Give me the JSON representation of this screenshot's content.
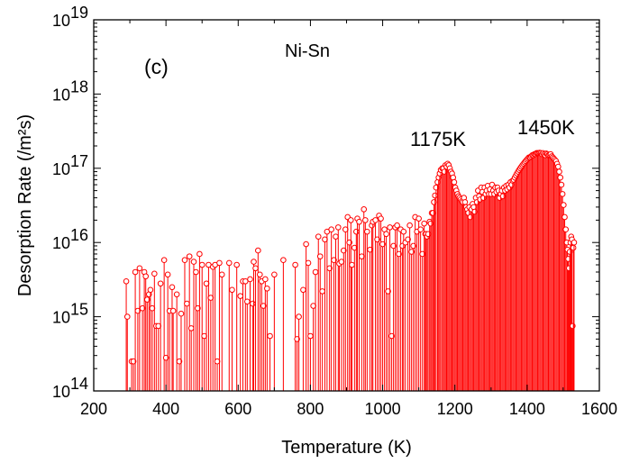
{
  "chart_data": {
    "type": "scatter",
    "panel_label": "(c)",
    "annotations": [
      "Ni-Sn",
      "1175K",
      "1450K"
    ],
    "xlabel": "Temperature (K)",
    "ylabel": "Desorption Rate (/m²s)",
    "xlim": [
      200,
      1600
    ],
    "ylim": [
      100000000000000.0,
      1e+19
    ],
    "yscale": "log",
    "x_ticks": [
      200,
      400,
      600,
      800,
      1000,
      1200,
      1400,
      1600
    ],
    "y_ticks": [
      {
        "base": "10",
        "exp": "14",
        "value": 100000000000000.0
      },
      {
        "base": "10",
        "exp": "15",
        "value": 1000000000000000.0
      },
      {
        "base": "10",
        "exp": "16",
        "value": 1e+16
      },
      {
        "base": "10",
        "exp": "17",
        "value": 1e+17
      },
      {
        "base": "10",
        "exp": "18",
        "value": 1e+18
      },
      {
        "base": "10",
        "exp": "19",
        "value": 1e+19
      }
    ],
    "grid": false,
    "series_color": "#ff0000",
    "series": [
      {
        "values": [
          [
            290,
            3000000000000000.0
          ],
          [
            293,
            1000000000000000.0
          ],
          [
            305,
            250000000000000.0
          ],
          [
            310,
            250000000000000.0
          ],
          [
            315,
            4000000000000000.0
          ],
          [
            322,
            1200000000000000.0
          ],
          [
            327,
            4500000000000000.0
          ],
          [
            335,
            1300000000000000.0
          ],
          [
            340,
            4000000000000000.0
          ],
          [
            344,
            3500000000000000.0
          ],
          [
            348,
            1700000000000000.0
          ],
          [
            353,
            2000000000000000.0
          ],
          [
            357,
            2300000000000000.0
          ],
          [
            362,
            1300000000000000.0
          ],
          [
            368,
            3800000000000000.0
          ],
          [
            373,
            750000000000000.0
          ],
          [
            379,
            750000000000000.0
          ],
          [
            385,
            2800000000000000.0
          ],
          [
            395,
            5800000000000000.0
          ],
          [
            400,
            280000000000000.0
          ],
          [
            405,
            3700000000000000.0
          ],
          [
            410,
            1200000000000000.0
          ],
          [
            417,
            2500000000000000.0
          ],
          [
            420,
            1200000000000000.0
          ],
          [
            430,
            2000000000000000.0
          ],
          [
            437,
            250000000000000.0
          ],
          [
            442,
            1100000000000000.0
          ],
          [
            452,
            5800000000000000.0
          ],
          [
            458,
            1500000000000000.0
          ],
          [
            465,
            6500000000000000.0
          ],
          [
            470,
            700000000000000.0
          ],
          [
            477,
            5500000000000000.0
          ],
          [
            483,
            4000000000000000.0
          ],
          [
            488,
            1300000000000000.0
          ],
          [
            493,
            7000000000000000.0
          ],
          [
            500,
            5000000000000000.0
          ],
          [
            506,
            550000000000000.0
          ],
          [
            512,
            2800000000000000.0
          ],
          [
            518,
            5000000000000000.0
          ],
          [
            524,
            1800000000000000.0
          ],
          [
            530,
            4700000000000000.0
          ],
          [
            536,
            5000000000000000.0
          ],
          [
            542,
            250000000000000.0
          ],
          [
            548,
            5300000000000000.0
          ],
          [
            555,
            3700000000000000.0
          ],
          [
            575,
            5300000000000000.0
          ],
          [
            583,
            2300000000000000.0
          ],
          [
            596,
            5000000000000000.0
          ],
          [
            606,
            1900000000000000.0
          ],
          [
            613,
            3000000000000000.0
          ],
          [
            620,
            3000000000000000.0
          ],
          [
            625,
            1600000000000000.0
          ],
          [
            633,
            3200000000000000.0
          ],
          [
            640,
            1500000000000000.0
          ],
          [
            643,
            5500000000000000.0
          ],
          [
            648,
            4500000000000000.0
          ],
          [
            655,
            7800000000000000.0
          ],
          [
            660,
            3700000000000000.0
          ],
          [
            665,
            3000000000000000.0
          ],
          [
            670,
            1400000000000000.0
          ],
          [
            675,
            3200000000000000.0
          ],
          [
            680,
            2400000000000000.0
          ],
          [
            688,
            550000000000000.0
          ],
          [
            700,
            3700000000000000.0
          ],
          [
            725,
            5800000000000000.0
          ],
          [
            758,
            5000000000000000.0
          ],
          [
            763,
            500000000000000.0
          ],
          [
            768,
            1000000000000000.0
          ],
          [
            780,
            2300000000000000.0
          ],
          [
            788,
            9500000000000000.0
          ],
          [
            794,
            5300000000000000.0
          ],
          [
            800,
            550000000000000.0
          ],
          [
            808,
            1400000000000000.0
          ],
          [
            814,
            4000000000000000.0
          ],
          [
            822,
            1.2e+16
          ],
          [
            827,
            6500000000000000.0
          ],
          [
            833,
            2200000000000000.0
          ],
          [
            840,
            1.1e+16
          ],
          [
            846,
            1.4e+16
          ],
          [
            853,
            4500000000000000.0
          ],
          [
            858,
            1.5e+16
          ],
          [
            865,
            5800000000000000.0
          ],
          [
            870,
            1.2e+16
          ],
          [
            877,
            1.6e+16
          ],
          [
            880,
            5200000000000000.0
          ],
          [
            886,
            5500000000000000.0
          ],
          [
            892,
            7800000000000000.0
          ],
          [
            897,
            1.5e+16
          ],
          [
            903,
            2.2e+16
          ],
          [
            908,
            1e+16
          ],
          [
            912,
            2e+16
          ],
          [
            915,
            5000000000000000.0
          ],
          [
            922,
            8500000000000000.0
          ],
          [
            927,
            1.4e+16
          ],
          [
            930,
            2.1e+16
          ],
          [
            935,
            1.9e+16
          ],
          [
            942,
            6500000000000000.0
          ],
          [
            948,
            2.8e+16
          ],
          [
            952,
            2e+16
          ],
          [
            957,
            1.4e+16
          ],
          [
            965,
            8000000000000000.0
          ],
          [
            970,
            1.7e+16
          ],
          [
            973,
            1.9e+16
          ],
          [
            980,
            2e+16
          ],
          [
            985,
            1.1e+16
          ],
          [
            990,
            2.3e+16
          ],
          [
            995,
            2.1e+16
          ],
          [
            1000,
            9500000000000000.0
          ],
          [
            1005,
            1.5e+16
          ],
          [
            1010,
            1.3e+16
          ],
          [
            1015,
            2200000000000000.0
          ],
          [
            1020,
            1.6e+16
          ],
          [
            1025,
            550000000000000.0
          ],
          [
            1030,
            9000000000000000.0
          ],
          [
            1035,
            1.6e+16
          ],
          [
            1040,
            1.7e+16
          ],
          [
            1045,
            7000000000000000.0
          ],
          [
            1050,
            1.5e+16
          ],
          [
            1055,
            9000000000000000.0
          ],
          [
            1058,
            1.4e+16
          ],
          [
            1063,
            1e+16
          ],
          [
            1070,
            1.1e+16
          ],
          [
            1075,
            1.7e+16
          ],
          [
            1080,
            7500000000000000.0
          ],
          [
            1085,
            9000000000000000.0
          ],
          [
            1090,
            2.2e+16
          ],
          [
            1095,
            1.4e+16
          ],
          [
            1100,
            2.1e+16
          ],
          [
            1105,
            1.5e+16
          ],
          [
            1110,
            7000000000000000.0
          ],
          [
            1115,
            1.8e+16
          ],
          [
            1118,
            1.3e+16
          ],
          [
            1120,
            1.3e+16
          ],
          [
            1123,
            1.2e+16
          ],
          [
            1126,
            1.3e+16
          ],
          [
            1130,
            1.9e+16
          ],
          [
            1133,
            1.8e+16
          ],
          [
            1136,
            2.5e+16
          ],
          [
            1139,
            2.5e+16
          ],
          [
            1142,
            3.5e+16
          ],
          [
            1145,
            4.3e+16
          ],
          [
            1148,
            5.5e+16
          ],
          [
            1152,
            6.5e+16
          ],
          [
            1155,
            7.5e+16
          ],
          [
            1158,
            8.5e+16
          ],
          [
            1161,
            9.5e+16
          ],
          [
            1165,
            1e+17
          ],
          [
            1168,
            1e+17
          ],
          [
            1171,
            9e+16
          ],
          [
            1174,
            1.1e+17
          ],
          [
            1177,
            1.05e+17
          ],
          [
            1180,
            1.15e+17
          ],
          [
            1183,
            1.1e+17
          ],
          [
            1186,
            1e+17
          ],
          [
            1189,
            9e+16
          ],
          [
            1192,
            8.5e+16
          ],
          [
            1195,
            7.5e+16
          ],
          [
            1198,
            6.5e+16
          ],
          [
            1201,
            5.5e+16
          ],
          [
            1204,
            5e+16
          ],
          [
            1207,
            4.5e+16
          ],
          [
            1210,
            4.2e+16
          ],
          [
            1213,
            4e+16
          ],
          [
            1216,
            3.8e+16
          ],
          [
            1219,
            3.6e+16
          ],
          [
            1222,
            3.5e+16
          ],
          [
            1225,
            4e+16
          ],
          [
            1228,
            3.5e+16
          ],
          [
            1231,
            3e+16
          ],
          [
            1234,
            2.8e+16
          ],
          [
            1237,
            2.5e+16
          ],
          [
            1240,
            3e+16
          ],
          [
            1243,
            2.2e+16
          ],
          [
            1246,
            2.8e+16
          ],
          [
            1249,
            3.3e+16
          ],
          [
            1252,
            3e+16
          ],
          [
            1255,
            2.6e+16
          ],
          [
            1258,
            4e+16
          ],
          [
            1261,
            3.5e+16
          ],
          [
            1264,
            5e+16
          ],
          [
            1267,
            4.2e+16
          ],
          [
            1270,
            3.8e+16
          ],
          [
            1273,
            5.5e+16
          ],
          [
            1276,
            4.8e+16
          ],
          [
            1279,
            4e+16
          ],
          [
            1282,
            5.5e+16
          ],
          [
            1285,
            4.5e+16
          ],
          [
            1288,
            5e+16
          ],
          [
            1291,
            5.8e+16
          ],
          [
            1294,
            4.5e+16
          ],
          [
            1297,
            5.2e+16
          ],
          [
            1300,
            4.5e+16
          ],
          [
            1303,
            6e+16
          ],
          [
            1306,
            5e+16
          ],
          [
            1309,
            4.5e+16
          ],
          [
            1312,
            5.5e+16
          ],
          [
            1315,
            4.8e+16
          ],
          [
            1318,
            5.5e+16
          ],
          [
            1321,
            5e+16
          ],
          [
            1324,
            4e+16
          ],
          [
            1327,
            4.5e+16
          ],
          [
            1330,
            5e+16
          ],
          [
            1333,
            4.2e+16
          ],
          [
            1336,
            5.5e+16
          ],
          [
            1339,
            5e+16
          ],
          [
            1342,
            5.8e+16
          ],
          [
            1345,
            5.2e+16
          ],
          [
            1348,
            6e+16
          ],
          [
            1351,
            5.5e+16
          ],
          [
            1354,
            6.5e+16
          ],
          [
            1357,
            6e+16
          ],
          [
            1360,
            6.8e+16
          ],
          [
            1363,
            7e+16
          ],
          [
            1366,
            7.5e+16
          ],
          [
            1369,
            8e+16
          ],
          [
            1372,
            8.5e+16
          ],
          [
            1375,
            9e+16
          ],
          [
            1378,
            9.5e+16
          ],
          [
            1381,
            1e+17
          ],
          [
            1384,
            1.05e+17
          ],
          [
            1387,
            1.1e+17
          ],
          [
            1390,
            1.15e+17
          ],
          [
            1393,
            1.2e+17
          ],
          [
            1396,
            1.25e+17
          ],
          [
            1399,
            1.3e+17
          ],
          [
            1402,
            1.35e+17
          ],
          [
            1405,
            1.4e+17
          ],
          [
            1408,
            1.4e+17
          ],
          [
            1411,
            1.45e+17
          ],
          [
            1414,
            1.5e+17
          ],
          [
            1417,
            1.5e+17
          ],
          [
            1420,
            1.55e+17
          ],
          [
            1423,
            1.55e+17
          ],
          [
            1426,
            1.6e+17
          ],
          [
            1429,
            1.6e+17
          ],
          [
            1432,
            1.6e+17
          ],
          [
            1435,
            1.62e+17
          ],
          [
            1438,
            1.6e+17
          ],
          [
            1441,
            1.55e+17
          ],
          [
            1444,
            1.6e+17
          ],
          [
            1447,
            1.55e+17
          ],
          [
            1450,
            1.5e+17
          ],
          [
            1453,
            1.58e+17
          ],
          [
            1456,
            1.55e+17
          ],
          [
            1459,
            1.5e+17
          ],
          [
            1462,
            1.52e+17
          ],
          [
            1465,
            1.55e+17
          ],
          [
            1468,
            1.45e+17
          ],
          [
            1471,
            1.4e+17
          ],
          [
            1474,
            1.35e+17
          ],
          [
            1477,
            1.3e+17
          ],
          [
            1480,
            1.25e+17
          ],
          [
            1483,
            1.15e+17
          ],
          [
            1486,
            1.05e+17
          ],
          [
            1489,
            9e+16
          ],
          [
            1492,
            7.5e+16
          ],
          [
            1495,
            6e+16
          ],
          [
            1498,
            4.5e+16
          ],
          [
            1501,
            3.2e+16
          ],
          [
            1504,
            2.2e+16
          ],
          [
            1507,
            1.5e+16
          ],
          [
            1510,
            1e+16
          ],
          [
            1512,
            8000000000000000.0
          ],
          [
            1514,
            6000000000000000.0
          ],
          [
            1516,
            4500000000000000.0
          ],
          [
            1518,
            7500000000000000.0
          ],
          [
            1520,
            1e+16
          ],
          [
            1522,
            1.2e+16
          ],
          [
            1524,
            1.1e+16
          ],
          [
            1526,
            750000000000000.0
          ],
          [
            1528,
            8500000000000000.0
          ],
          [
            1530,
            1e+16
          ]
        ]
      }
    ]
  }
}
